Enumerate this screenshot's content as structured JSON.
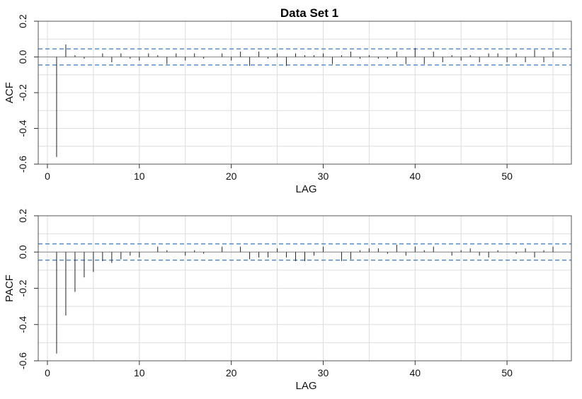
{
  "chart_data": {
    "title": "Data Set 1",
    "type": "bar",
    "conf_limit": 0.045,
    "xlim": [
      -1,
      57
    ],
    "ylim": [
      -0.6,
      0.2
    ],
    "xticks": [
      0,
      10,
      20,
      30,
      40,
      50
    ],
    "yticks": [
      -0.6,
      -0.4,
      -0.2,
      0.0,
      0.2
    ],
    "ytick_labels": [
      "-0.6",
      "-0.4",
      "-0.2",
      "0.0",
      "0.2"
    ],
    "xlabel": "LAG",
    "grid": true,
    "colors": {
      "spike": "#222222",
      "ci": "#3a7abf",
      "grid": "#dddddd",
      "frame": "#555555"
    },
    "panels": [
      {
        "ylabel": "ACF",
        "x": [
          1,
          2,
          3,
          4,
          5,
          6,
          7,
          8,
          9,
          10,
          11,
          12,
          13,
          14,
          15,
          16,
          17,
          18,
          19,
          20,
          21,
          22,
          23,
          24,
          25,
          26,
          27,
          28,
          29,
          30,
          31,
          32,
          33,
          34,
          35,
          36,
          37,
          38,
          39,
          40,
          41,
          42,
          43,
          44,
          45,
          46,
          47,
          48,
          49,
          50,
          51,
          52,
          53,
          54,
          55
        ],
        "values": [
          -0.56,
          0.07,
          0.01,
          -0.01,
          0.0,
          0.02,
          -0.03,
          0.02,
          -0.01,
          -0.02,
          0.02,
          0.01,
          -0.04,
          0.02,
          -0.02,
          0.02,
          -0.01,
          0.0,
          0.02,
          -0.02,
          0.03,
          -0.05,
          0.03,
          -0.01,
          0.02,
          -0.05,
          0.02,
          0.01,
          0.01,
          0.02,
          -0.04,
          0.01,
          0.03,
          -0.01,
          0.01,
          -0.01,
          -0.01,
          0.03,
          -0.04,
          0.05,
          -0.04,
          0.03,
          -0.03,
          0.01,
          -0.02,
          0.01,
          -0.03,
          0.02,
          0.02,
          -0.03,
          0.02,
          -0.03,
          0.04,
          -0.03,
          0.03
        ]
      },
      {
        "ylabel": "PACF",
        "x": [
          1,
          2,
          3,
          4,
          5,
          6,
          7,
          8,
          9,
          10,
          11,
          12,
          13,
          14,
          15,
          16,
          17,
          18,
          19,
          20,
          21,
          22,
          23,
          24,
          25,
          26,
          27,
          28,
          29,
          30,
          31,
          32,
          33,
          34,
          35,
          36,
          37,
          38,
          39,
          40,
          41,
          42,
          43,
          44,
          45,
          46,
          47,
          48,
          49,
          50,
          51,
          52,
          53,
          54,
          55
        ],
        "values": [
          -0.56,
          -0.35,
          -0.22,
          -0.14,
          -0.11,
          -0.05,
          -0.06,
          -0.04,
          -0.02,
          -0.03,
          0.0,
          0.03,
          0.01,
          0.0,
          -0.02,
          0.01,
          -0.01,
          0.0,
          0.03,
          0.0,
          0.03,
          -0.04,
          -0.03,
          -0.03,
          0.02,
          -0.03,
          -0.05,
          -0.05,
          -0.02,
          0.03,
          0.0,
          -0.05,
          -0.04,
          0.01,
          0.02,
          0.02,
          -0.01,
          0.04,
          -0.02,
          0.03,
          0.01,
          0.03,
          0.0,
          -0.02,
          0.01,
          0.02,
          -0.02,
          -0.03,
          0.01,
          0.0,
          -0.01,
          0.02,
          -0.03,
          0.01,
          0.03
        ]
      }
    ]
  }
}
